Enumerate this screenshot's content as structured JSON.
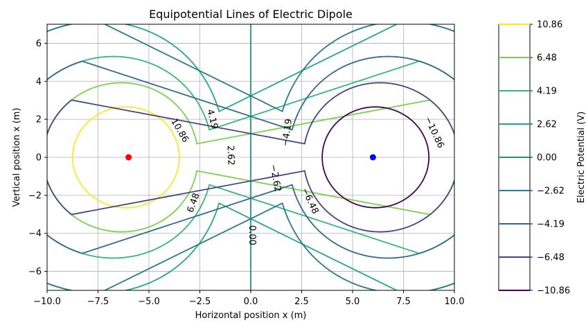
{
  "chart_data": {
    "type": "contour",
    "title": "Equipotential Lines of Electric Dipole",
    "xlabel": "Horizontal position x (m)",
    "ylabel": "Vertical position x (m)",
    "xlim": [
      -10,
      10
    ],
    "ylim": [
      -7,
      7
    ],
    "grid": true,
    "x_ticks": [
      -10,
      -7.5,
      -5,
      -2.5,
      0,
      2.5,
      5,
      7.5,
      10
    ],
    "x_tick_labels": [
      "−10.0",
      "−7.5",
      "−5.0",
      "−2.5",
      "0.0",
      "2.5",
      "5.0",
      "7.5",
      "10.0"
    ],
    "y_ticks": [
      -6,
      -4,
      -2,
      0,
      2,
      4,
      6
    ],
    "y_tick_labels": [
      "−6",
      "−4",
      "−2",
      "0",
      "2",
      "4",
      "6"
    ],
    "charges": [
      {
        "x": -6,
        "y": 0,
        "color": "#ff0000"
      },
      {
        "x": 6,
        "y": 0,
        "color": "#0000ff"
      }
    ],
    "levels": [
      {
        "value": 10.86,
        "label": "10.86",
        "color": "#fde725"
      },
      {
        "value": 6.48,
        "label": "6.48",
        "color": "#7ad151"
      },
      {
        "value": 4.19,
        "label": "4.19",
        "color": "#35b779"
      },
      {
        "value": 2.62,
        "label": "2.62",
        "color": "#22a884"
      },
      {
        "value": 0.0,
        "label": "0.00",
        "color": "#21918c"
      },
      {
        "value": -2.62,
        "label": "−2.62",
        "color": "#2a788e"
      },
      {
        "value": -4.19,
        "label": "−4.19",
        "color": "#31688e"
      },
      {
        "value": -6.48,
        "label": "−6.48",
        "color": "#414487"
      },
      {
        "value": -10.86,
        "label": "−10.86",
        "color": "#440154"
      }
    ],
    "contour_labels": [
      {
        "text": "10.86",
        "x": -3.5,
        "y": 1.4,
        "angle": 60
      },
      {
        "text": "6.48",
        "x": -2.8,
        "y": -2.4,
        "angle": -70
      },
      {
        "text": "4.19",
        "x": -1.9,
        "y": 2.0,
        "angle": 75
      },
      {
        "text": "2.62",
        "x": -1.0,
        "y": 0.1,
        "angle": 88
      },
      {
        "text": "0.00",
        "x": 0.05,
        "y": -4.1,
        "angle": 90
      },
      {
        "text": "−2.62",
        "x": 1.2,
        "y": -1.1,
        "angle": 80
      },
      {
        "text": "−4.19",
        "x": 1.8,
        "y": 1.3,
        "angle": -82
      },
      {
        "text": "−6.48",
        "x": 2.9,
        "y": -2.3,
        "angle": 65
      },
      {
        "text": "−10.86",
        "x": 9.0,
        "y": 1.3,
        "angle": 65
      }
    ],
    "colorbar": {
      "label": "Electric Potential (V)",
      "ticks": [
        "10.86",
        "6.48",
        "4.19",
        "2.62",
        "0.00",
        "−2.62",
        "−4.19",
        "−6.48",
        "−10.86"
      ]
    }
  }
}
